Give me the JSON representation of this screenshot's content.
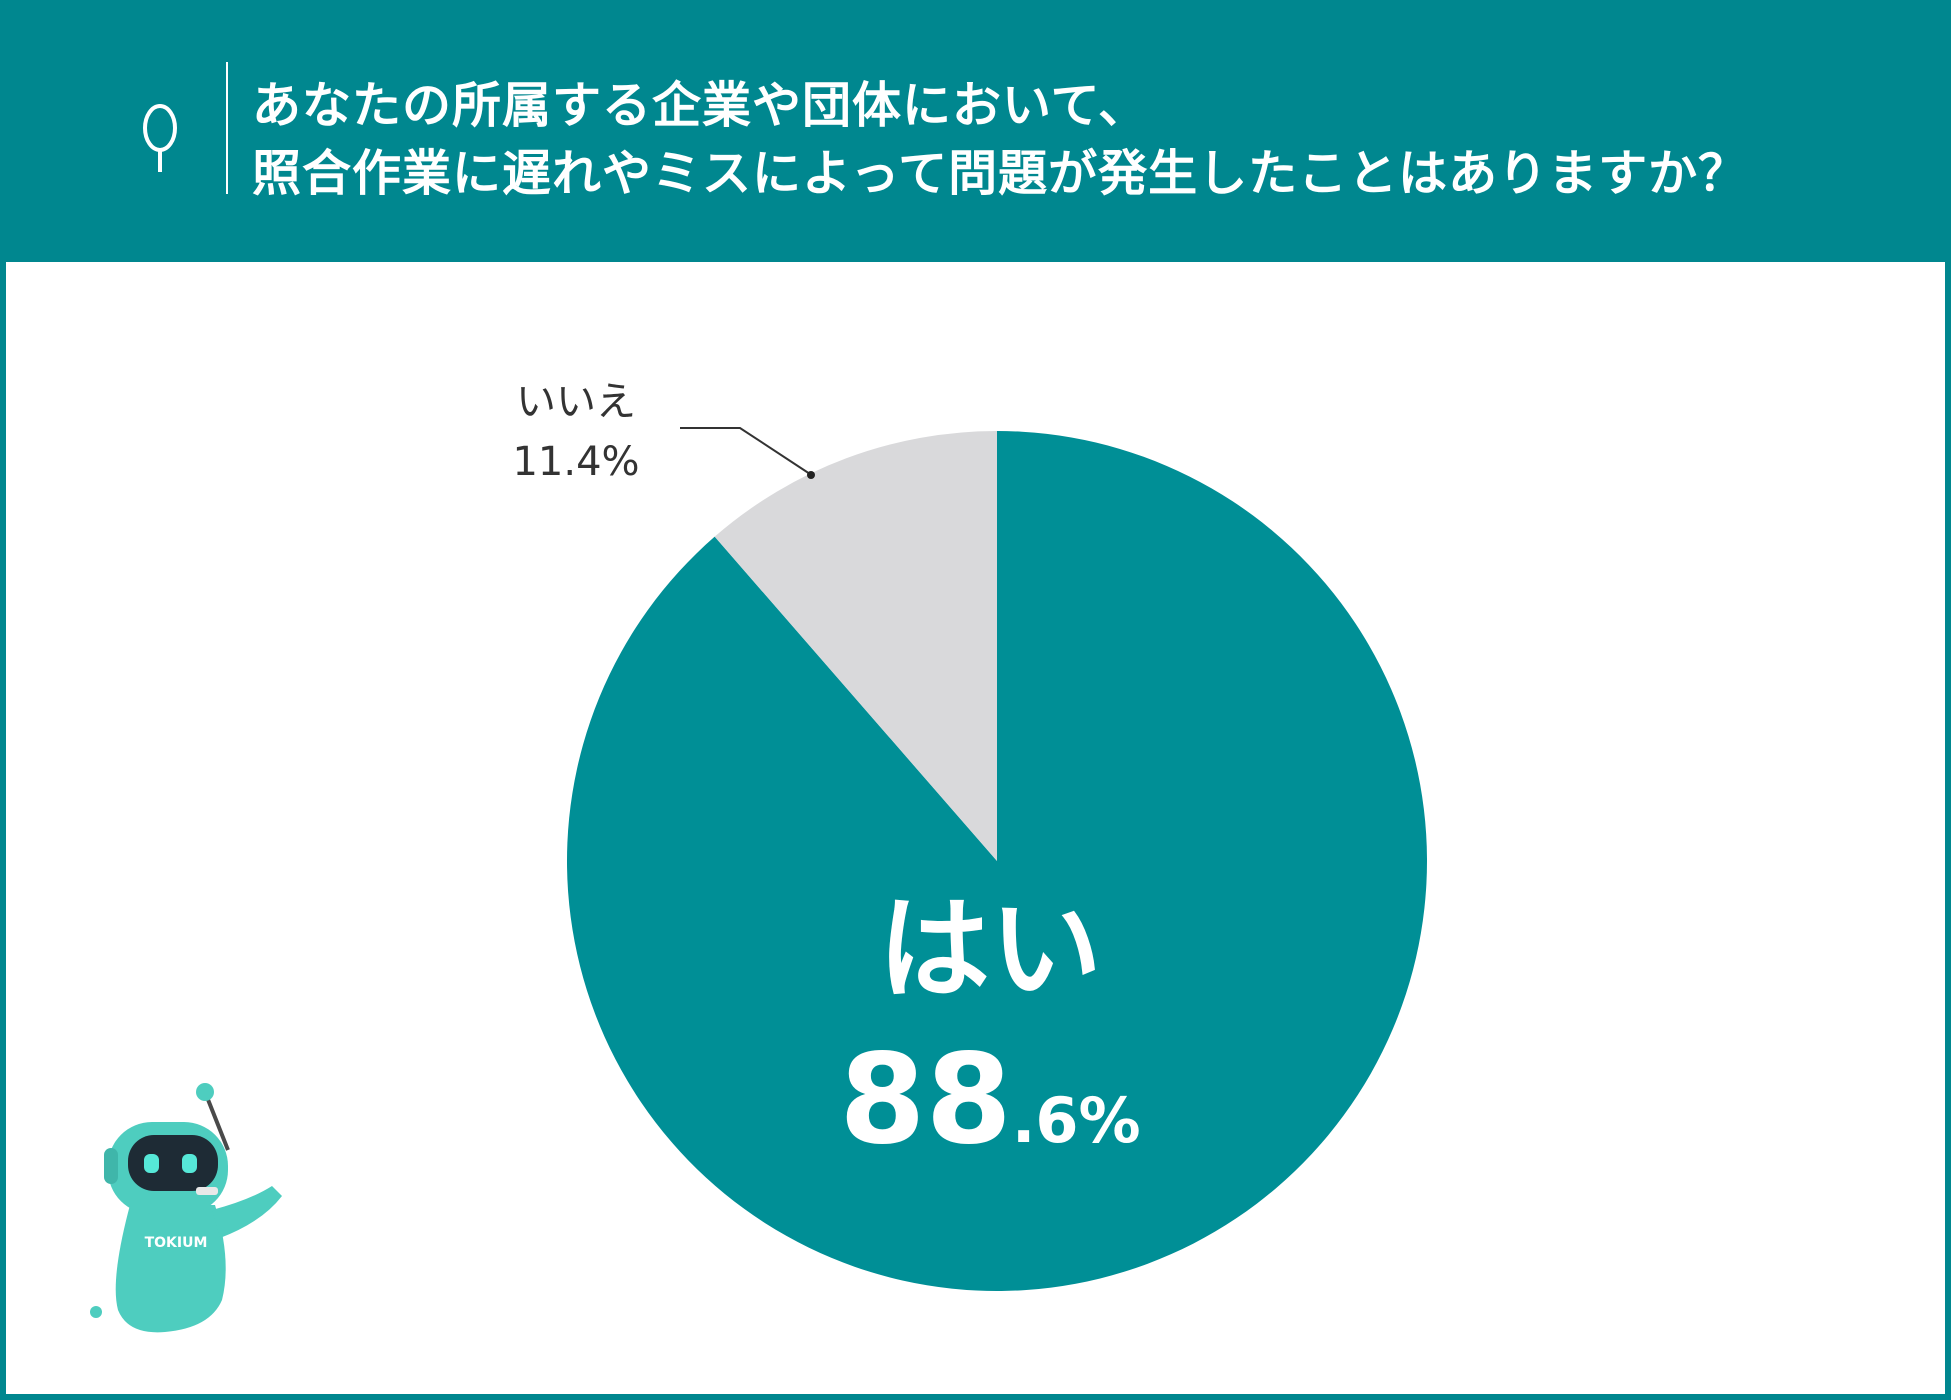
{
  "question": {
    "marker": "Q",
    "lines": [
      "あなたの所属する企業や団体において、",
      "照合作業に遅れやミスによって問題が発生したことはありますか？"
    ]
  },
  "colors": {
    "accent": "#00878f",
    "secondary": "#d9d9db",
    "mascot": "#4ecdbf"
  },
  "chart_data": {
    "type": "pie",
    "slices": [
      {
        "label": "はい",
        "value": 88.6,
        "display_number": "88",
        "display_suffix": ".6%",
        "color": "#008f96"
      },
      {
        "label": "いいえ",
        "value": 11.4,
        "display": "11.4%",
        "color": "#d9d9db"
      }
    ]
  },
  "mascot": {
    "icon": "robot-mascot-icon",
    "badge_text": "TOKIUM"
  }
}
